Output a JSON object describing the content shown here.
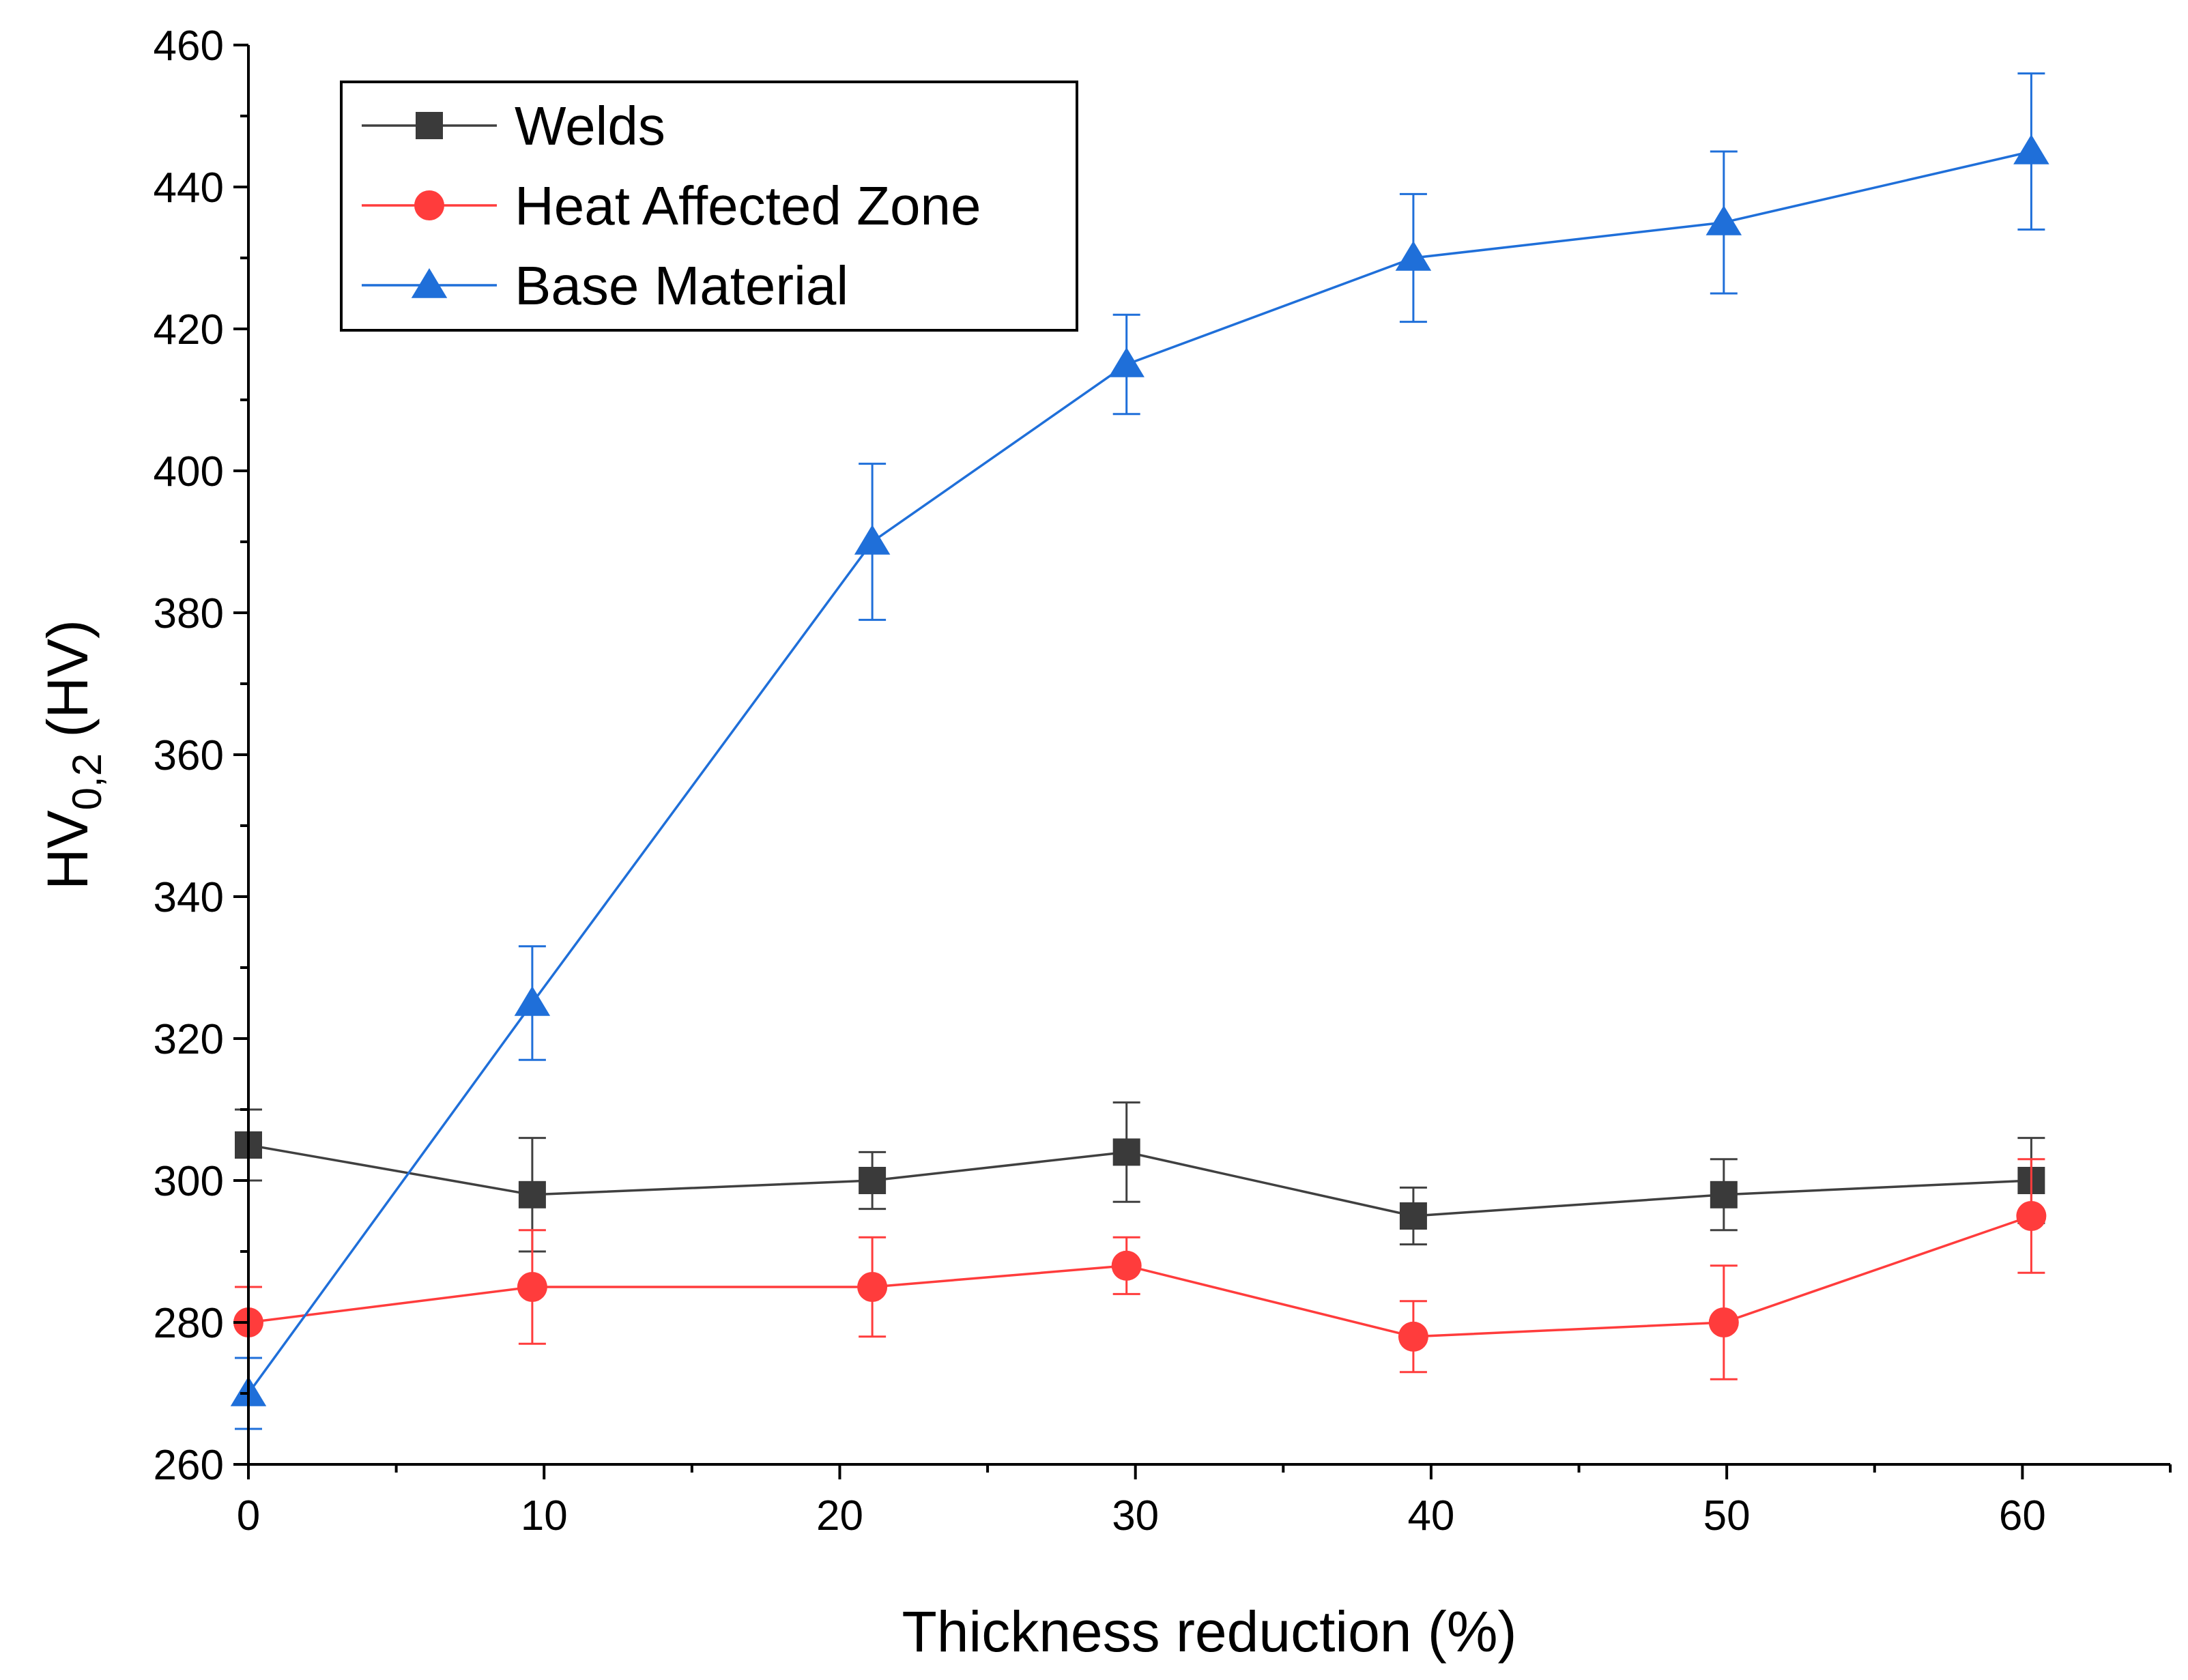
{
  "chart_data": {
    "type": "line",
    "title": "",
    "xlabel": "Thickness reduction (%)",
    "ylabel": {
      "main": "HV",
      "sub": "0,2",
      "unit": " (HV)"
    },
    "xlim": [
      0,
      65
    ],
    "ylim": [
      260,
      460
    ],
    "x_ticks": [
      0,
      10,
      20,
      30,
      40,
      50,
      60
    ],
    "x_tick_labels": [
      "0",
      "10",
      "20",
      "30",
      "40",
      "50",
      "60"
    ],
    "y_ticks": [
      260,
      280,
      300,
      320,
      340,
      360,
      380,
      400,
      420,
      440,
      460
    ],
    "y_tick_labels": [
      "260",
      "280",
      "300",
      "320",
      "340",
      "360",
      "380",
      "400",
      "420",
      "440",
      "460"
    ],
    "x_minor_step": 5,
    "y_minor_step": 10,
    "grid": false,
    "legend_position": "top-left",
    "x": [
      0,
      9.6,
      21.1,
      29.7,
      39.4,
      49.9,
      60.3
    ],
    "series": [
      {
        "name": "Welds",
        "color": "#000000",
        "line_color": "#404040",
        "marker_color": "#3a3a3a",
        "marker": "square",
        "values": [
          305,
          298,
          300,
          304,
          295,
          298,
          300
        ],
        "errors": [
          5,
          8,
          4,
          7,
          4,
          5,
          6
        ]
      },
      {
        "name": "Heat Affected Zone",
        "color": "#ff3c3c",
        "line_color": "#ff3c3c",
        "marker_color": "#ff3c3c",
        "marker": "circle",
        "values": [
          280,
          285,
          285,
          288,
          278,
          280,
          295
        ],
        "errors": [
          5,
          8,
          7,
          4,
          5,
          8,
          8
        ]
      },
      {
        "name": "Base Material",
        "color": "#1f6fd9",
        "line_color": "#1f6fd9",
        "marker_color": "#1f6fd9",
        "marker": "triangle",
        "values": [
          270,
          325,
          390,
          415,
          430,
          435,
          445
        ],
        "errors": [
          5,
          8,
          11,
          7,
          9,
          10,
          11
        ]
      }
    ]
  }
}
